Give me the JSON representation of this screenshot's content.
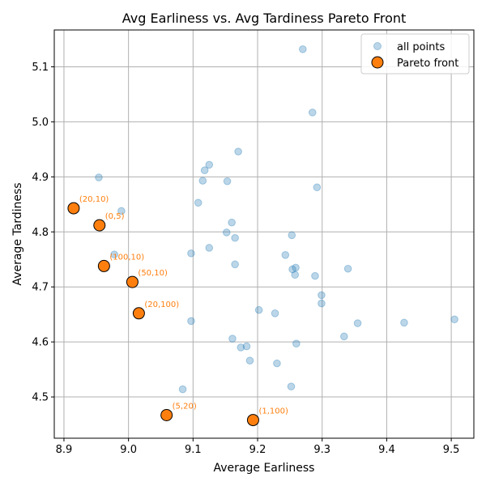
{
  "chart_data": {
    "type": "scatter",
    "title": "Avg Earliness vs. Avg Tardiness Pareto Front",
    "xlabel": "Average Earliness",
    "ylabel": "Average Tardiness",
    "xlim": [
      8.885,
      9.535
    ],
    "ylim": [
      4.425,
      5.167
    ],
    "xticks": [
      "8.9",
      "9.0",
      "9.1",
      "9.2",
      "9.3",
      "9.4",
      "9.5"
    ],
    "yticks": [
      "4.5",
      "4.6",
      "4.7",
      "4.8",
      "4.9",
      "5.0",
      "5.1"
    ],
    "grid": true,
    "legend_position": "top-right",
    "colors": {
      "all_points": "#1f77b4",
      "pareto_fill": "#ff7f0e",
      "annotation": "#ff7f0e"
    },
    "series": [
      {
        "name": "all points",
        "x": [
          9.27,
          9.285,
          9.17,
          9.125,
          9.118,
          9.115,
          9.153,
          8.954,
          9.292,
          9.108,
          8.989,
          9.16,
          9.253,
          9.165,
          9.152,
          9.125,
          9.097,
          8.978,
          9.243,
          9.165,
          9.259,
          9.254,
          9.34,
          9.289,
          9.258,
          9.299,
          9.299,
          9.202,
          9.227,
          9.505,
          9.427,
          9.355,
          9.097,
          9.334,
          9.161,
          9.26,
          9.183,
          9.174,
          9.188,
          9.23,
          9.252,
          9.084
        ],
        "y": [
          5.132,
          5.017,
          4.946,
          4.922,
          4.912,
          4.893,
          4.892,
          4.899,
          4.881,
          4.853,
          4.838,
          4.817,
          4.794,
          4.789,
          4.799,
          4.771,
          4.761,
          4.759,
          4.758,
          4.741,
          4.735,
          4.732,
          4.733,
          4.72,
          4.722,
          4.685,
          4.67,
          4.658,
          4.652,
          4.641,
          4.635,
          4.634,
          4.638,
          4.61,
          4.606,
          4.597,
          4.592,
          4.59,
          4.566,
          4.561,
          4.519,
          4.514
        ]
      },
      {
        "name": "Pareto front",
        "x": [
          8.915,
          8.955,
          8.962,
          9.006,
          9.016,
          9.059,
          9.193
        ],
        "y": [
          4.843,
          4.812,
          4.738,
          4.709,
          4.652,
          4.467,
          4.458
        ],
        "labels": [
          "(20,10)",
          "(0,5)",
          "(100,10)",
          "(50,10)",
          "(20,100)",
          "(5,20)",
          "(1,100)"
        ]
      }
    ]
  }
}
